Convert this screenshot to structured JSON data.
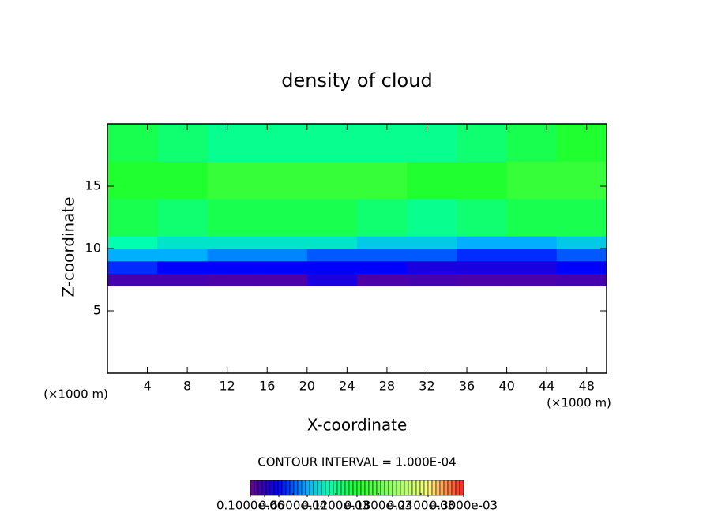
{
  "chart_data": {
    "type": "heatmap",
    "title": "density of cloud",
    "x_label": "X-coordinate",
    "y_label": "Z-coordinate",
    "x_unit": "(×1000 m)",
    "y_unit": "(×1000 m)",
    "note": "CONTOUR INTERVAL = 1.000E-04",
    "xlim": [
      0,
      50
    ],
    "ylim": [
      0,
      20
    ],
    "xticks": [
      4,
      8,
      12,
      16,
      20,
      24,
      28,
      32,
      36,
      40,
      44,
      48
    ],
    "yticks": [
      5,
      10,
      15
    ],
    "x_bins": [
      0,
      5,
      10,
      15,
      20,
      25,
      30,
      35,
      40,
      45,
      50
    ],
    "y_bins": [
      7,
      8,
      9,
      10,
      11,
      14,
      17,
      20
    ],
    "values": [
      [
        1.2e-05,
        1.2e-05,
        1e-05,
        1e-05,
        3e-05,
        1e-05,
        1.2e-05,
        1e-05,
        1e-05,
        1.2e-05
      ],
      [
        5e-05,
        4e-05,
        4e-05,
        4e-05,
        4e-05,
        4e-05,
        3e-05,
        3e-05,
        3e-05,
        4e-05
      ],
      [
        8e-05,
        8e-05,
        7e-05,
        7e-05,
        6e-05,
        6e-05,
        6e-05,
        5e-05,
        5e-05,
        6e-05
      ],
      [
        0.00011,
        0.0001,
        0.0001,
        0.0001,
        0.0001,
        9e-05,
        9e-05,
        8e-05,
        8e-05,
        9e-05
      ],
      [
        0.00014,
        0.00013,
        0.00014,
        0.00014,
        0.00014,
        0.00013,
        0.00012,
        0.00013,
        0.00014,
        0.00014
      ],
      [
        0.00015,
        0.00015,
        0.00016,
        0.00016,
        0.00016,
        0.00016,
        0.00015,
        0.00015,
        0.00016,
        0.00016
      ],
      [
        0.00014,
        0.00013,
        0.00012,
        0.00012,
        0.00012,
        0.00012,
        0.00012,
        0.00013,
        0.00014,
        0.00015
      ]
    ],
    "colorscale": [
      [
        0,
        "#6a0090"
      ],
      [
        2e-05,
        "#3000c0"
      ],
      [
        4e-05,
        "#0000ff"
      ],
      [
        8e-05,
        "#00b0ff"
      ],
      [
        0.00011,
        "#00ffb0"
      ],
      [
        0.00015,
        "#20ff30"
      ],
      [
        0.0002,
        "#90ff60"
      ],
      [
        0.00025,
        "#ffff80"
      ],
      [
        0.0003,
        "#ff2020"
      ]
    ],
    "cbar_ticks": [
      {
        "value": 1e-07,
        "label": "0.1000e-06"
      },
      {
        "value": 6e-05,
        "label": "0.6000e-04"
      },
      {
        "value": 0.00012,
        "label": "0.1200e-03"
      },
      {
        "value": 0.00018,
        "label": "0.1800e-03"
      },
      {
        "value": 0.00024,
        "label": "0.2400e-03"
      },
      {
        "value": 0.0003,
        "label": "0.3000e-03"
      }
    ]
  }
}
